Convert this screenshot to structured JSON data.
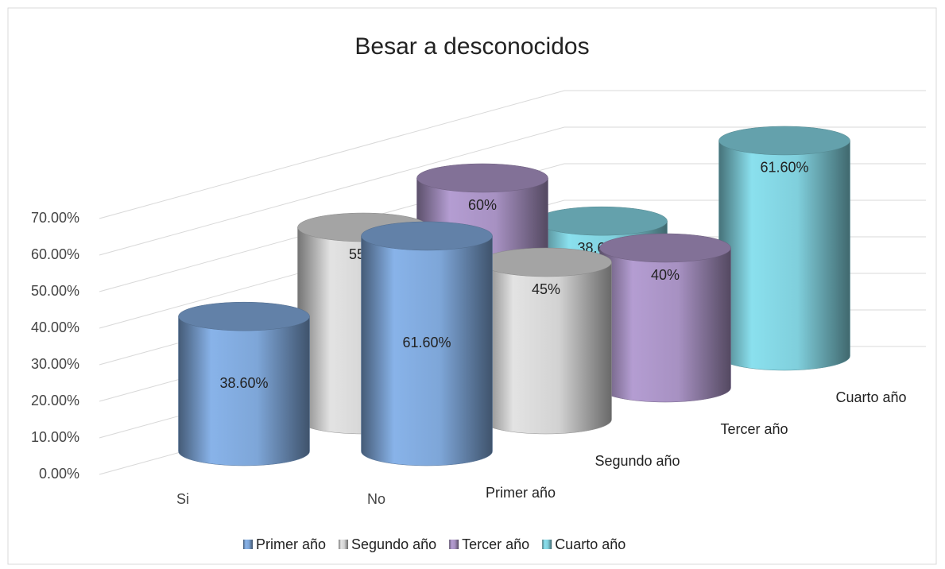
{
  "chart_data": {
    "type": "bar3d",
    "title": "Besar a desconocidos",
    "categories": [
      "Si",
      "No"
    ],
    "series": [
      {
        "name": "Primer año",
        "color": "#7ea6d8",
        "values": [
          38.6,
          61.6
        ],
        "value_labels": [
          "38.60%",
          "61.60%"
        ]
      },
      {
        "name": "Segundo año",
        "color": "#d2d2d2",
        "values": [
          55,
          45
        ],
        "value_labels": [
          "55%",
          "45%"
        ]
      },
      {
        "name": "Tercer año",
        "color": "#a791c2",
        "values": [
          60,
          40
        ],
        "value_labels": [
          "60%",
          "40%"
        ]
      },
      {
        "name": "Cuarto año",
        "color": "#80cfdc",
        "values": [
          38.6,
          61.6
        ],
        "value_labels": [
          "38.60%",
          "61.60%"
        ]
      }
    ],
    "ylim": [
      0,
      70
    ],
    "yticks": [
      {
        "value": 0,
        "label": "0.00%"
      },
      {
        "value": 10,
        "label": "10.00%"
      },
      {
        "value": 20,
        "label": "20.00%"
      },
      {
        "value": 30,
        "label": "30.00%"
      },
      {
        "value": 40,
        "label": "40.00%"
      },
      {
        "value": 50,
        "label": "50.00%"
      },
      {
        "value": 60,
        "label": "60.00%"
      },
      {
        "value": 70,
        "label": "70.00%"
      }
    ],
    "grid": true,
    "legend": "bottom"
  }
}
